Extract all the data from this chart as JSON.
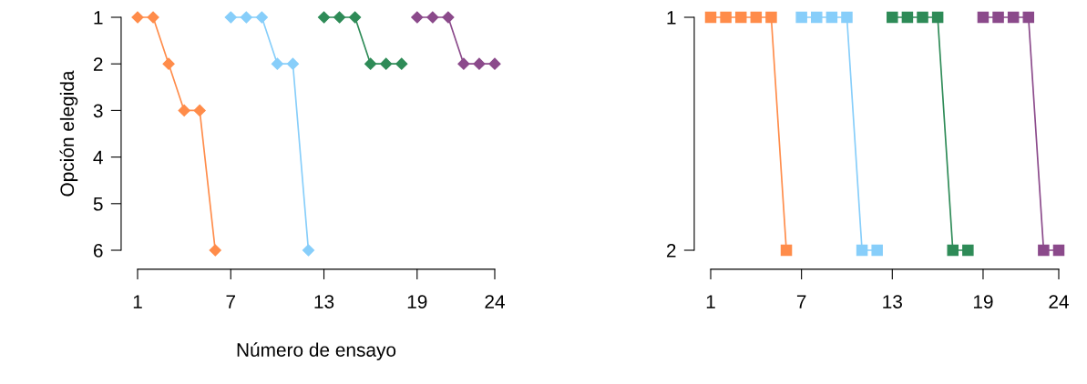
{
  "chart_data": [
    {
      "type": "line",
      "ylabel": "Opción elegida",
      "xlabel": "Número de ensayo",
      "marker": "diamond",
      "line_style": "solid",
      "xlim": [
        1,
        24
      ],
      "ylim": [
        6,
        1
      ],
      "xticks": [
        1,
        7,
        13,
        19,
        24
      ],
      "yticks": [
        1,
        2,
        3,
        4,
        5,
        6
      ],
      "series": [
        {
          "color": "#ff8c4a",
          "x": [
            1,
            2,
            3,
            4,
            5,
            6
          ],
          "values": [
            1,
            1,
            2,
            3,
            3,
            6
          ]
        },
        {
          "color": "#87cefa",
          "x": [
            7,
            8,
            9,
            10,
            11,
            12
          ],
          "values": [
            1,
            1,
            1,
            2,
            2,
            6
          ]
        },
        {
          "color": "#2e8b57",
          "x": [
            13,
            14,
            15,
            16,
            17,
            18
          ],
          "values": [
            1,
            1,
            1,
            2,
            2,
            2
          ]
        },
        {
          "color": "#8b4a8b",
          "x": [
            19,
            20,
            21,
            22,
            23,
            24
          ],
          "values": [
            1,
            1,
            1,
            2,
            2,
            2
          ]
        }
      ]
    },
    {
      "type": "line",
      "marker": "square",
      "line_style": "solid",
      "xlim": [
        1,
        24
      ],
      "ylim": [
        2,
        1
      ],
      "xticks": [
        1,
        7,
        13,
        19,
        24
      ],
      "yticks": [
        1,
        2
      ],
      "series": [
        {
          "color": "#ff8c4a",
          "x": [
            1,
            2,
            3,
            4,
            5,
            6
          ],
          "values": [
            1,
            1,
            1,
            1,
            1,
            2
          ]
        },
        {
          "color": "#87cefa",
          "x": [
            7,
            8,
            9,
            10,
            11,
            12
          ],
          "values": [
            1,
            1,
            1,
            1,
            2,
            2
          ]
        },
        {
          "color": "#2e8b57",
          "x": [
            13,
            14,
            15,
            16,
            17,
            18
          ],
          "values": [
            1,
            1,
            1,
            1,
            2,
            2
          ]
        },
        {
          "color": "#8b4a8b",
          "x": [
            19,
            20,
            21,
            22,
            23,
            24
          ],
          "values": [
            1,
            1,
            1,
            1,
            2,
            2
          ]
        }
      ]
    }
  ]
}
